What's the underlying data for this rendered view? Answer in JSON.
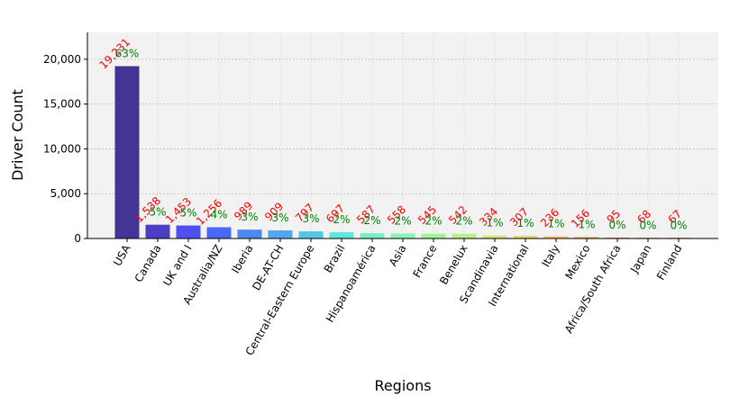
{
  "chart_data": {
    "type": "bar",
    "xlabel": "Regions",
    "ylabel": "Driver Count",
    "ylim": [
      0,
      23000
    ],
    "yticks": [
      0,
      5000,
      10000,
      15000,
      20000
    ],
    "ytick_labels": [
      "0",
      "5,000",
      "10,000",
      "15,000",
      "20,000"
    ],
    "grid": true,
    "categories": [
      "USA",
      "Canada",
      "UK and I",
      "Australia/NZ",
      "Iberia",
      "DE-AT-CH",
      "Central-Eastern Europe",
      "Brazil",
      "Hispanoamérica",
      "Asia",
      "France",
      "Benelux",
      "Scandinavia",
      "International",
      "Italy",
      "Mexico",
      "Africa/South Africa",
      "Japan",
      "Finland"
    ],
    "values": [
      19231,
      1538,
      1453,
      1256,
      989,
      909,
      797,
      697,
      587,
      558,
      545,
      542,
      334,
      307,
      236,
      156,
      95,
      68,
      67
    ],
    "value_labels": [
      "19,231",
      "1,538",
      "1,453",
      "1,256",
      "989",
      "909",
      "797",
      "697",
      "587",
      "558",
      "545",
      "542",
      "334",
      "307",
      "236",
      "156",
      "95",
      "68",
      "67"
    ],
    "percent_labels": [
      "63%",
      "5%",
      "5%",
      "4%",
      "3%",
      "3%",
      "3%",
      "2%",
      "2%",
      "2%",
      "2%",
      "2%",
      "1%",
      "1%",
      "1%",
      "1%",
      "0%",
      "0%",
      "0%"
    ],
    "colors": [
      "#30208a",
      "#3b2bbf",
      "#3d3df2",
      "#3a57f5",
      "#3d7cf0",
      "#41a0ec",
      "#44c1e6",
      "#4be7d8",
      "#66f2bf",
      "#7ef5a9",
      "#98f58f",
      "#b4f07a",
      "#cfe566",
      "#e6d55a",
      "#f3bb4e",
      "#f49a44",
      "#ee7337",
      "#e2442a",
      "#cc1515"
    ]
  }
}
